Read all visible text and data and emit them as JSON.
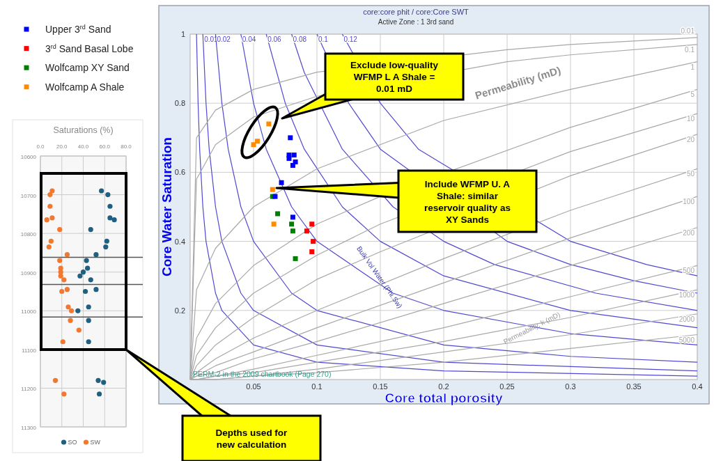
{
  "chart_data": [
    {
      "type": "scatter",
      "title": "core:core phit / core:Core SWT",
      "subtitle": "Active Zone : 1  3rd sand",
      "xlabel": "Core total porosity",
      "ylabel": "Core Water Saturation",
      "xlim": [
        0,
        0.4
      ],
      "ylim": [
        0,
        1
      ],
      "xticks": [
        0.05,
        0.1,
        0.15,
        0.2,
        0.25,
        0.3,
        0.35,
        0.4
      ],
      "yticks": [
        0.2,
        0.4,
        0.6,
        0.8,
        1
      ],
      "grid": true,
      "legend": "top left",
      "annotations": [
        "Exclude low-quality WFMP L A Shale = 0.01 mD",
        "Include WFMP U. A Shale: similar reservoir quality as XY Sands",
        "Permeability (mD)",
        "Bulk Vol Water (Phi.Sw)",
        "Permeability, k (mD)",
        "PERM-2 in the 2009 chartbook (Page 270)"
      ],
      "series": [
        {
          "type": "line",
          "color": "#5048d0",
          "x": [
            0.005,
            0.00625,
            0.0075,
            0.01,
            0.0125,
            0.02,
            0.025,
            0.05,
            0.1,
            0.2,
            0.4
          ],
          "values": [
            1,
            0.8,
            0.667,
            0.5,
            0.4,
            0.25,
            0.2,
            0.1,
            0.05,
            0.025,
            0.01
          ]
        },
        {
          "type": "line",
          "name": "0.01",
          "color": "#5048d0",
          "x": [
            0.01,
            0.0125,
            0.015,
            0.02,
            0.025,
            0.04,
            0.05,
            0.1,
            0.2,
            0.4
          ],
          "values": [
            1,
            0.8,
            0.667,
            0.5,
            0.4,
            0.25,
            0.2,
            0.1,
            0.05,
            0.025
          ]
        },
        {
          "type": "line",
          "name": "0.02",
          "color": "#5048d0",
          "x": [
            0.02,
            0.025,
            0.03,
            0.04,
            0.05,
            0.08,
            0.1,
            0.2,
            0.3,
            0.4
          ],
          "values": [
            1,
            0.8,
            0.667,
            0.5,
            0.4,
            0.25,
            0.2,
            0.1,
            0.067,
            0.05
          ]
        },
        {
          "type": "line",
          "name": "0.04",
          "color": "#5048d0",
          "x": [
            0.04,
            0.05,
            0.06,
            0.08,
            0.1,
            0.16,
            0.2,
            0.3,
            0.4
          ],
          "values": [
            1,
            0.8,
            0.667,
            0.5,
            0.4,
            0.25,
            0.2,
            0.133,
            0.1
          ]
        },
        {
          "type": "line",
          "name": "0.06",
          "color": "#5048d0",
          "x": [
            0.06,
            0.075,
            0.09,
            0.12,
            0.15,
            0.2,
            0.3,
            0.4
          ],
          "values": [
            1,
            0.8,
            0.667,
            0.5,
            0.4,
            0.3,
            0.2,
            0.15
          ]
        },
        {
          "type": "line",
          "name": "0.08",
          "color": "#5048d0",
          "x": [
            0.08,
            0.09,
            0.12,
            0.16,
            0.2,
            0.24,
            0.32,
            0.4
          ],
          "values": [
            1,
            0.889,
            0.667,
            0.5,
            0.4,
            0.333,
            0.25,
            0.2
          ]
        },
        {
          "type": "line",
          "name": "0.1",
          "color": "#5048d0",
          "x": [
            0.1,
            0.125,
            0.15,
            0.25,
            0.3,
            0.35,
            0.4
          ],
          "values": [
            1,
            0.8,
            0.667,
            0.4,
            0.333,
            0.286,
            0.25
          ]
        },
        {
          "type": "line",
          "name": "0.12",
          "color": "#5048d0",
          "x": [
            0.12,
            0.15,
            0.18,
            0.3,
            0.36,
            0.4
          ],
          "values": [
            1,
            0.8,
            0.667,
            0.4,
            0.333,
            0.3
          ]
        },
        {
          "type": "line",
          "name": "0.01",
          "color": "#a8a8a8",
          "x": [
            0,
            0.005,
            0.02,
            0.05,
            0.1,
            0.25,
            0.3,
            0.4
          ],
          "values": [
            0,
            0.7,
            0.78,
            0.84,
            0.89,
            0.955,
            0.97,
            0.99
          ]
        },
        {
          "type": "line",
          "name": "0.1",
          "color": "#a8a8a8",
          "x": [
            0,
            0.005,
            0.02,
            0.05,
            0.1,
            0.25,
            0.3,
            0.4
          ],
          "values": [
            0,
            0.58,
            0.68,
            0.76,
            0.82,
            0.92,
            0.94,
            0.97
          ]
        },
        {
          "type": "line",
          "name": "1",
          "color": "#a8a8a8",
          "x": [
            0,
            0.005,
            0.02,
            0.05,
            0.1,
            0.2,
            0.3,
            0.4
          ],
          "values": [
            0,
            0.26,
            0.38,
            0.5,
            0.61,
            0.75,
            0.84,
            0.92
          ]
        },
        {
          "type": "line",
          "name": "5",
          "color": "#a8a8a8",
          "x": [
            0,
            0.005,
            0.02,
            0.05,
            0.1,
            0.15,
            0.3,
            0.4
          ],
          "values": [
            0,
            0.12,
            0.22,
            0.33,
            0.45,
            0.53,
            0.73,
            0.84
          ]
        },
        {
          "type": "line",
          "name": "10",
          "color": "#a8a8a8",
          "x": [
            0,
            0.005,
            0.02,
            0.05,
            0.1,
            0.15,
            0.3,
            0.4
          ],
          "values": [
            0,
            0.07,
            0.15,
            0.25,
            0.36,
            0.45,
            0.66,
            0.77
          ]
        },
        {
          "type": "line",
          "name": "20",
          "color": "#a8a8a8",
          "x": [
            0,
            0.005,
            0.02,
            0.05,
            0.1,
            0.15,
            0.3,
            0.4
          ],
          "values": [
            0,
            0.04,
            0.1,
            0.18,
            0.29,
            0.37,
            0.59,
            0.71
          ]
        },
        {
          "type": "line",
          "name": "50",
          "color": "#a8a8a8",
          "x": [
            0,
            0.005,
            0.02,
            0.05,
            0.1,
            0.2,
            0.3,
            0.4
          ],
          "values": [
            0,
            0.02,
            0.06,
            0.12,
            0.2,
            0.35,
            0.49,
            0.61
          ]
        },
        {
          "type": "line",
          "name": "100",
          "color": "#a8a8a8",
          "x": [
            0,
            0.005,
            0.02,
            0.05,
            0.1,
            0.2,
            0.3,
            0.4
          ],
          "values": [
            0,
            0.01,
            0.04,
            0.08,
            0.15,
            0.28,
            0.41,
            0.53
          ]
        },
        {
          "type": "line",
          "name": "200",
          "color": "#a8a8a8",
          "x": [
            0,
            0.005,
            0.02,
            0.05,
            0.1,
            0.2,
            0.3,
            0.4
          ],
          "values": [
            0,
            0.01,
            0.02,
            0.06,
            0.11,
            0.22,
            0.33,
            0.44
          ]
        },
        {
          "type": "line",
          "name": "500",
          "color": "#a8a8a8",
          "x": [
            0,
            0.005,
            0.02,
            0.05,
            0.1,
            0.2,
            0.3,
            0.4
          ],
          "values": [
            0,
            0,
            0.01,
            0.03,
            0.07,
            0.15,
            0.24,
            0.33
          ]
        },
        {
          "type": "line",
          "name": "1000",
          "color": "#a8a8a8",
          "x": [
            0,
            0.005,
            0.02,
            0.05,
            0.1,
            0.2,
            0.3,
            0.4
          ],
          "values": [
            0,
            0,
            0.01,
            0.02,
            0.05,
            0.11,
            0.18,
            0.26
          ]
        },
        {
          "type": "line",
          "name": "2000",
          "color": "#a8a8a8",
          "x": [
            0,
            0.005,
            0.02,
            0.05,
            0.1,
            0.2,
            0.3,
            0.4
          ],
          "values": [
            0,
            0,
            0,
            0.01,
            0.03,
            0.08,
            0.13,
            0.19
          ]
        },
        {
          "type": "line",
          "name": "5000",
          "color": "#a8a8a8",
          "x": [
            0,
            0.005,
            0.02,
            0.05,
            0.1,
            0.2,
            0.3,
            0.4
          ],
          "values": [
            0,
            0,
            0,
            0.01,
            0.02,
            0.05,
            0.09,
            0.13
          ]
        },
        {
          "marker": "square",
          "name": "Upper 3$^{rd}$ Sand",
          "color": "#0000ff",
          "x": [
            0.079,
            0.078,
            0.082,
            0.078,
            0.083,
            0.081,
            0.072,
            0.067,
            0.081
          ],
          "values": [
            0.7,
            0.65,
            0.65,
            0.64,
            0.63,
            0.62,
            0.57,
            0.53,
            0.47
          ]
        },
        {
          "marker": "square",
          "name": "3$^{rd}$ Sand Basal Lobe",
          "color": "#ff0000",
          "x": [
            0.096,
            0.092,
            0.097,
            0.096
          ],
          "values": [
            0.45,
            0.43,
            0.4,
            0.37
          ]
        },
        {
          "marker": "square",
          "name": "Wolfcamp XY Sand",
          "color": "#008000",
          "x": [
            0.065,
            0.069,
            0.08,
            0.081,
            0.083
          ],
          "values": [
            0.53,
            0.48,
            0.45,
            0.43,
            0.35
          ]
        },
        {
          "marker": "square",
          "name": "Wolfcamp A Shale",
          "color": "#ff8c00",
          "x": [
            0.062,
            0.053,
            0.05,
            0.065,
            0.066
          ],
          "values": [
            0.74,
            0.69,
            0.68,
            0.55,
            0.45
          ]
        }
      ]
    },
    {
      "type": "scatter",
      "title": "Saturations (%)",
      "xlim": [
        0,
        80
      ],
      "ylim": [
        11300,
        10600
      ],
      "xticks": [
        {
          "value": 0,
          "label": "0.0"
        },
        {
          "value": 20,
          "label": "20.0"
        },
        {
          "value": 40,
          "label": "40.0"
        },
        {
          "value": 60,
          "label": "60.0"
        },
        {
          "value": 80,
          "label": "80.0"
        }
      ],
      "yticks": [
        10600,
        10700,
        10800,
        10900,
        11000,
        11100,
        11200,
        11300
      ],
      "grid": true,
      "legend": "bottom",
      "marker": "circle",
      "ref_lines": [
        {
          "axis": "y",
          "value": 10862,
          "color": "#555555"
        },
        {
          "axis": "y",
          "value": 10932,
          "color": "#555555"
        },
        {
          "axis": "y",
          "value": 11016,
          "color": "#555555"
        }
      ],
      "annotations": [
        "Depths used for new calculation"
      ],
      "series": [
        {
          "name": "SO",
          "color": "#1f5f80",
          "x": [
            57,
            63,
            65,
            65,
            69,
            47,
            62,
            61,
            52,
            43,
            44,
            40,
            37,
            47,
            52,
            42,
            45,
            35,
            45,
            45,
            54,
            59,
            55
          ],
          "values": [
            10690,
            10700,
            10730,
            10760,
            10765,
            10790,
            10820,
            10835,
            10855,
            10870,
            10890,
            10900,
            10910,
            10920,
            10945,
            10950,
            10990,
            11000,
            11025,
            11080,
            11180,
            11185,
            11215
          ]
        },
        {
          "name": "SW",
          "color": "#f07830",
          "x": [
            11,
            9,
            9,
            6,
            11,
            18,
            10,
            8,
            25,
            18,
            19,
            19,
            19,
            22,
            25,
            20,
            26,
            29,
            28,
            36,
            21,
            14,
            22
          ],
          "values": [
            10690,
            10700,
            10730,
            10765,
            10760,
            10790,
            10820,
            10835,
            10855,
            10870,
            10890,
            10900,
            10910,
            10920,
            10945,
            10950,
            10990,
            11000,
            11025,
            11050,
            11080,
            11180,
            11215
          ]
        }
      ]
    }
  ]
}
